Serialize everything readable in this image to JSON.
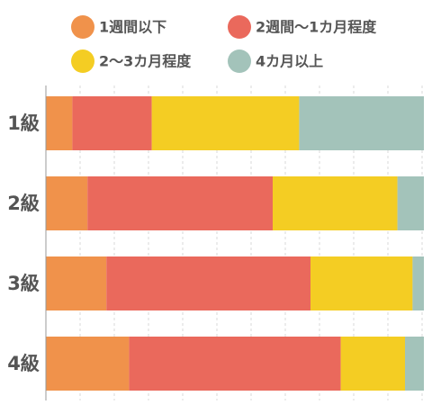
{
  "chart_data": {
    "type": "bar",
    "orientation": "horizontal",
    "stacked": true,
    "normalized": true,
    "categories": [
      "1級",
      "2級",
      "3級",
      "4級"
    ],
    "series": [
      {
        "name": "1週間以下",
        "color": "#F0924B",
        "values": [
          7,
          11,
          16,
          22
        ]
      },
      {
        "name": "2週間〜1カ月程度",
        "color": "#EA695C",
        "values": [
          21,
          49,
          54,
          56
        ]
      },
      {
        "name": "2〜3カ月程度",
        "color": "#F4CD23",
        "values": [
          39,
          33,
          27,
          17
        ]
      },
      {
        "name": "4カ月以上",
        "color": "#A3C3BA",
        "values": [
          33,
          7,
          3,
          5
        ]
      }
    ],
    "xlim": [
      0,
      100
    ],
    "grid": true,
    "legend_position": "top"
  }
}
